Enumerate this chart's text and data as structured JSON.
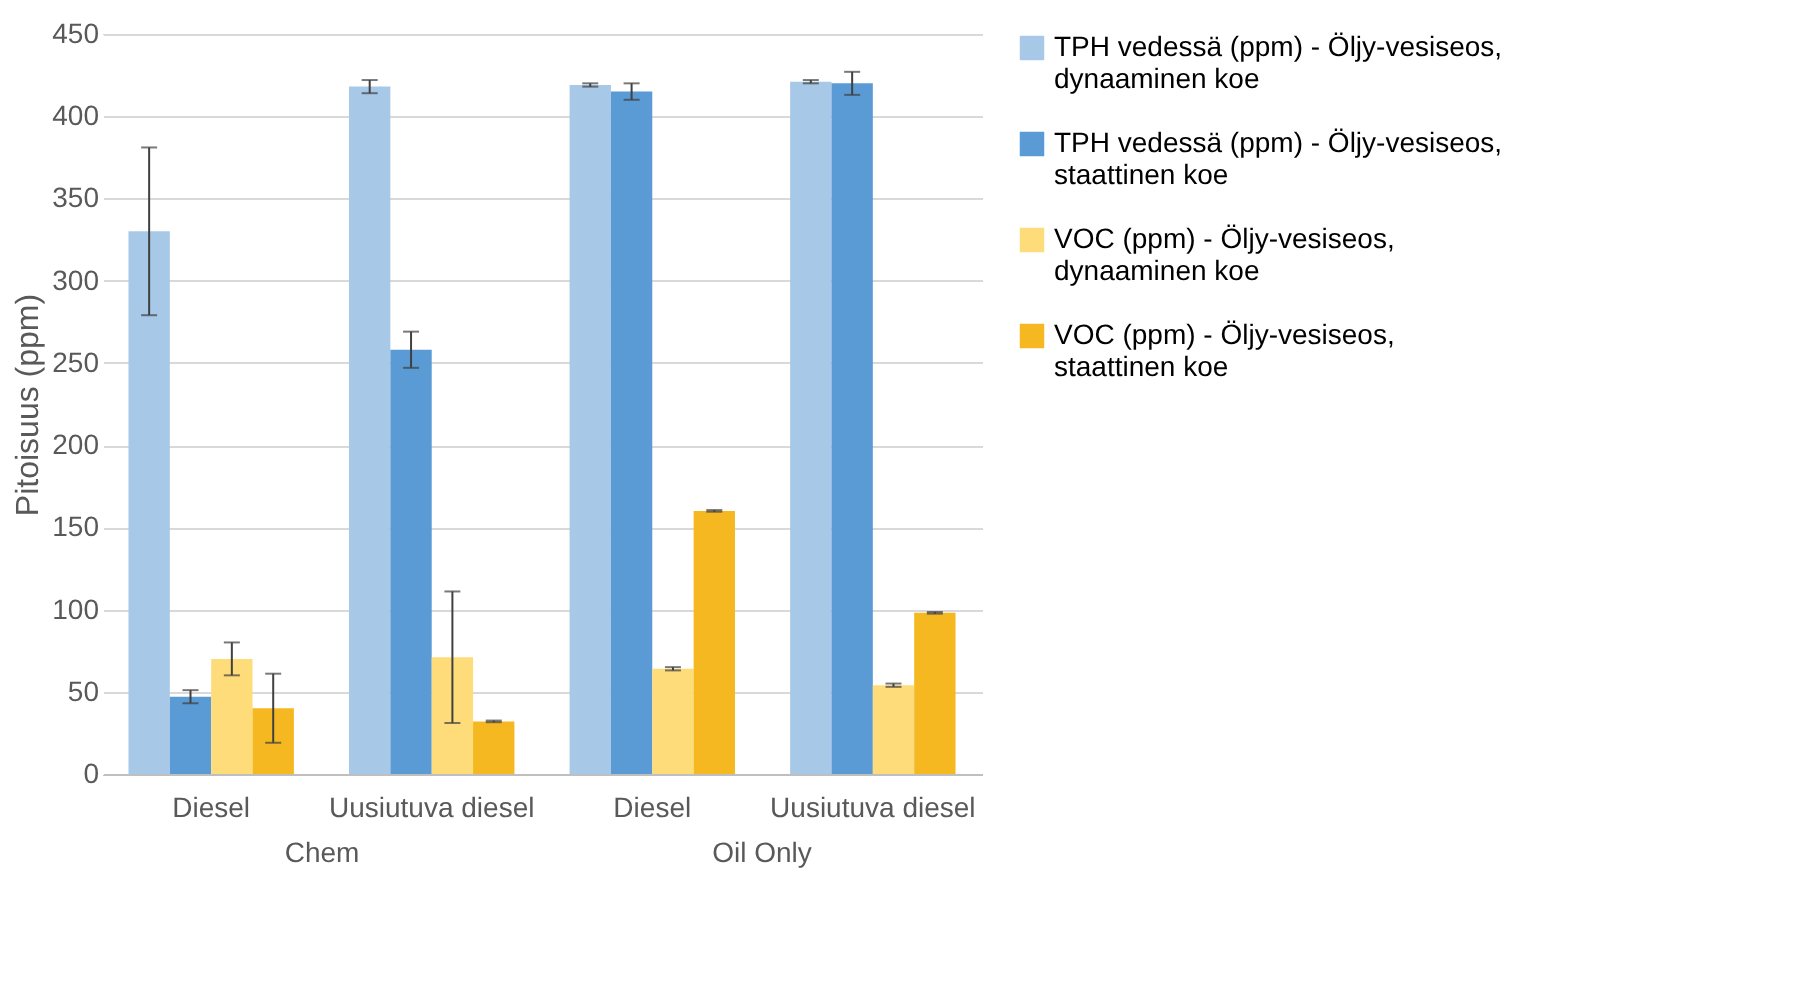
{
  "chart_data": {
    "type": "bar",
    "ylabel": "Pitoisuus (ppm)",
    "categories": [
      "Diesel",
      "Uusiutuva diesel",
      "Diesel",
      "Uusiutuva diesel"
    ],
    "annotations": [
      "Chem",
      "Oil Only"
    ],
    "series": [
      {
        "name": "TPH vedessä (ppm) - Öljy-vesiseos, dynaaminen koe",
        "color": "#a8c8e8",
        "values": [
          330,
          418,
          419,
          421
        ],
        "errors": [
          51,
          4,
          1,
          1
        ]
      },
      {
        "name": "TPH vedessä (ppm) - Öljy-vesiseos, staattinen koe",
        "color": "#5b9bd5",
        "values": [
          47,
          258,
          415,
          420
        ],
        "errors": [
          4,
          11,
          5,
          7
        ]
      },
      {
        "name": "VOC (ppm) - Öljy-vesiseos, dynaaminen koe",
        "color": "#ffdc7a",
        "values": [
          70,
          71,
          64,
          54
        ],
        "errors": [
          10,
          40,
          1,
          1
        ]
      },
      {
        "name": "VOC (ppm) - Öljy-vesiseos, staattinen koe",
        "color": "#f5b820",
        "values": [
          40,
          32,
          160,
          98
        ],
        "errors": [
          21,
          0.5,
          0.5,
          0.5
        ]
      }
    ],
    "ylim": [
      0,
      450
    ],
    "yticks": [
      0,
      50,
      100,
      150,
      200,
      250,
      300,
      350,
      400,
      450
    ],
    "grid": "y",
    "legend": "right"
  }
}
